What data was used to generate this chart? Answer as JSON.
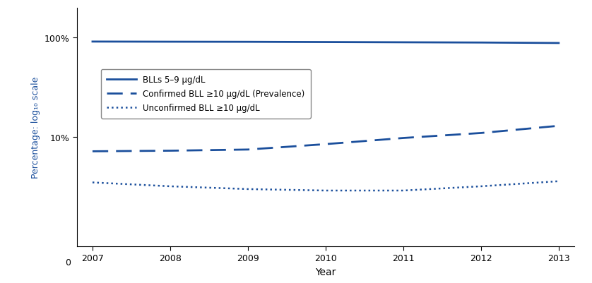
{
  "years": [
    2007,
    2008,
    2009,
    2010,
    2011,
    2012,
    2013
  ],
  "solid_line": [
    91.5,
    91.2,
    91.0,
    90.5,
    90.0,
    89.5,
    88.5
  ],
  "dashed_line": [
    7.2,
    7.3,
    7.5,
    8.5,
    9.8,
    11.0,
    13.0
  ],
  "dotted_line": [
    3.5,
    3.2,
    3.0,
    2.9,
    2.9,
    3.2,
    3.6
  ],
  "line_color": "#1B4F9C",
  "ylabel_color": "#1B4F9C",
  "xlabel": "Year",
  "ylabel": "Percentage: log₁₀ scale",
  "xlim": [
    2006.8,
    2013.2
  ],
  "ylim_log": [
    0.8,
    200
  ],
  "legend_labels": [
    "BLLs 5–9 μg/dL",
    "Confirmed BLL ≥10 μg/dL (Prevalence)",
    "Unconfirmed BLL ≥10 μg/dL"
  ],
  "ytick_positions": [
    10,
    100
  ],
  "ytick_labels": [
    "10%",
    "100%"
  ],
  "figsize": [
    8.38,
    4.02
  ],
  "dpi": 100
}
